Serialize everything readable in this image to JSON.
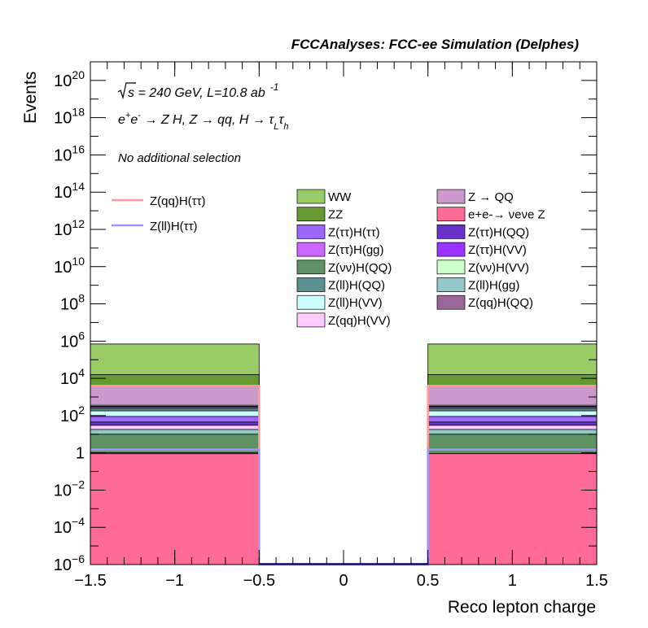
{
  "chart_data": {
    "type": "bar",
    "stacked": true,
    "log_y": true,
    "title": "FCCAnalyses: FCC-ee Simulation (Delphes)",
    "xlabel": "Reco lepton charge",
    "ylabel": "Events",
    "xlim": [
      -1.5,
      1.5
    ],
    "ylim": [
      1e-06,
      1e+21
    ],
    "grid": false,
    "legend_position": "top-right",
    "x_ticks": [
      {
        "v": -1.5,
        "label": "−1.5"
      },
      {
        "v": -1,
        "label": "−1"
      },
      {
        "v": -0.5,
        "label": "−0.5"
      },
      {
        "v": 0,
        "label": "0"
      },
      {
        "v": 0.5,
        "label": "0.5"
      },
      {
        "v": 1,
        "label": "1"
      },
      {
        "v": 1.5,
        "label": "1.5"
      }
    ],
    "y_ticks": [
      {
        "exp": -6,
        "base": "10",
        "sup": "−6"
      },
      {
        "exp": -4,
        "base": "10",
        "sup": "−4"
      },
      {
        "exp": -2,
        "base": "10",
        "sup": "−2"
      },
      {
        "exp": 0,
        "base": "1",
        "sup": ""
      },
      {
        "exp": 2,
        "base": "10",
        "sup": "2"
      },
      {
        "exp": 4,
        "base": "10",
        "sup": "4"
      },
      {
        "exp": 6,
        "base": "10",
        "sup": "6"
      },
      {
        "exp": 8,
        "base": "10",
        "sup": "8"
      },
      {
        "exp": 10,
        "base": "10",
        "sup": "10"
      },
      {
        "exp": 12,
        "base": "10",
        "sup": "12"
      },
      {
        "exp": 14,
        "base": "10",
        "sup": "14"
      },
      {
        "exp": 16,
        "base": "10",
        "sup": "16"
      },
      {
        "exp": 18,
        "base": "10",
        "sup": "18"
      },
      {
        "exp": 20,
        "base": "10",
        "sup": "20"
      }
    ],
    "bins": [
      {
        "lo": -1.5,
        "hi": -0.5
      },
      {
        "lo": -0.5,
        "hi": 0.5
      },
      {
        "lo": 0.5,
        "hi": 1.5
      }
    ],
    "stack_cumulative_top": [
      {
        "name": "e+e- → νeνe Z",
        "color": "#ff6b97",
        "values": [
          0.9,
          0,
          0.9
        ]
      },
      {
        "name": "Z(qq)H(QQ)",
        "color": "#9b6799",
        "values": [
          1.0,
          0,
          0.9
        ]
      },
      {
        "name": "Z(νν)H(QQ)",
        "color": "#5e9164",
        "values": [
          10,
          0,
          10
        ]
      },
      {
        "name": "Z(ll)H(gg)",
        "color": "#94c9c7",
        "values": [
          18,
          0,
          18
        ]
      },
      {
        "name": "Z(qq)H(VV)",
        "color": "#ffccff",
        "values": [
          30,
          0,
          30
        ]
      },
      {
        "name": "Z(ττ)H(QQ)",
        "color": "#6a32c8",
        "values": [
          45,
          0,
          45
        ]
      },
      {
        "name": "Z(ττ)H(ττ)",
        "color": "#9f66ff",
        "values": [
          90,
          0,
          90
        ]
      },
      {
        "name": "Z(ll)H(VV)",
        "color": "#ccffff",
        "values": [
          180,
          0,
          180
        ]
      },
      {
        "name": "Z(ll)H(QQ)",
        "color": "#5b9191",
        "values": [
          240,
          0,
          240
        ]
      },
      {
        "name": "Z(ττ)H(gg)",
        "color": "#cc66ff",
        "values": [
          280,
          0,
          280
        ]
      },
      {
        "name": "Z(ττ)H(VV)",
        "color": "#9a33ff",
        "values": [
          320,
          0,
          320
        ]
      },
      {
        "name": "Z(νν)H(VV)",
        "color": "#ccffcc",
        "values": [
          360,
          0,
          360
        ]
      },
      {
        "name": "Z → QQ",
        "color": "#cc99cc",
        "values": [
          4000,
          0,
          4000
        ]
      },
      {
        "name": "ZZ",
        "color": "#669933",
        "values": [
          16000,
          0,
          16000
        ]
      },
      {
        "name": "WW",
        "color": "#99cc66",
        "values": [
          700000,
          0,
          700000
        ]
      }
    ],
    "signal_lines": [
      {
        "name": "Z(qq)H(ττ)",
        "color": "#ff9999",
        "values": [
          4000,
          0,
          4000
        ]
      },
      {
        "name": "Z(ll)H(ττ)",
        "color": "#9999ff",
        "values": [
          1.5,
          0,
          1.5
        ]
      }
    ],
    "annotations": {
      "energy_prefix": "s",
      "energy_rest": " = 240 GeV, L=10.8 ab",
      "energy_sup": "-1",
      "process_a": "e",
      "process_sup_plus": "+",
      "process_e2": "e",
      "process_sup_minus": "-",
      "process_mid": " → Z H, Z  → qq, H  → τ",
      "process_sub_l": "L",
      "process_tau2": "τ",
      "process_sub_h": "h",
      "selection": "No additional selection"
    },
    "legend_signal": [
      {
        "label": "Z(qq)H(ττ)",
        "color": "#ff9999"
      },
      {
        "label": "Z(ll)H(ττ)",
        "color": "#9999ff"
      }
    ],
    "legend_col1": [
      {
        "label": "WW",
        "color": "#99cc66"
      },
      {
        "label": "ZZ",
        "color": "#669933"
      },
      {
        "label": "Z(ττ)H(ττ)",
        "color": "#9f66ff"
      },
      {
        "label": "Z(ττ)H(gg)",
        "color": "#cc66ff"
      },
      {
        "label": "Z(νν)H(QQ)",
        "color": "#5e9164"
      },
      {
        "label": "Z(ll)H(QQ)",
        "color": "#5b9191"
      },
      {
        "label": "Z(ll)H(VV)",
        "color": "#ccffff"
      },
      {
        "label": "Z(qq)H(VV)",
        "color": "#ffccff"
      }
    ],
    "legend_col2": [
      {
        "label": "Z → QQ",
        "color": "#cc99cc"
      },
      {
        "label": "e+e-→ νeνe Z",
        "color": "#ff6b97"
      },
      {
        "label": "Z(ττ)H(QQ)",
        "color": "#6a32c8"
      },
      {
        "label": "Z(ττ)H(VV)",
        "color": "#9a33ff"
      },
      {
        "label": "Z(νν)H(VV)",
        "color": "#ccffcc"
      },
      {
        "label": "Z(ll)H(gg)",
        "color": "#94c9c7"
      },
      {
        "label": "Z(qq)H(QQ)",
        "color": "#9b6799"
      }
    ]
  }
}
